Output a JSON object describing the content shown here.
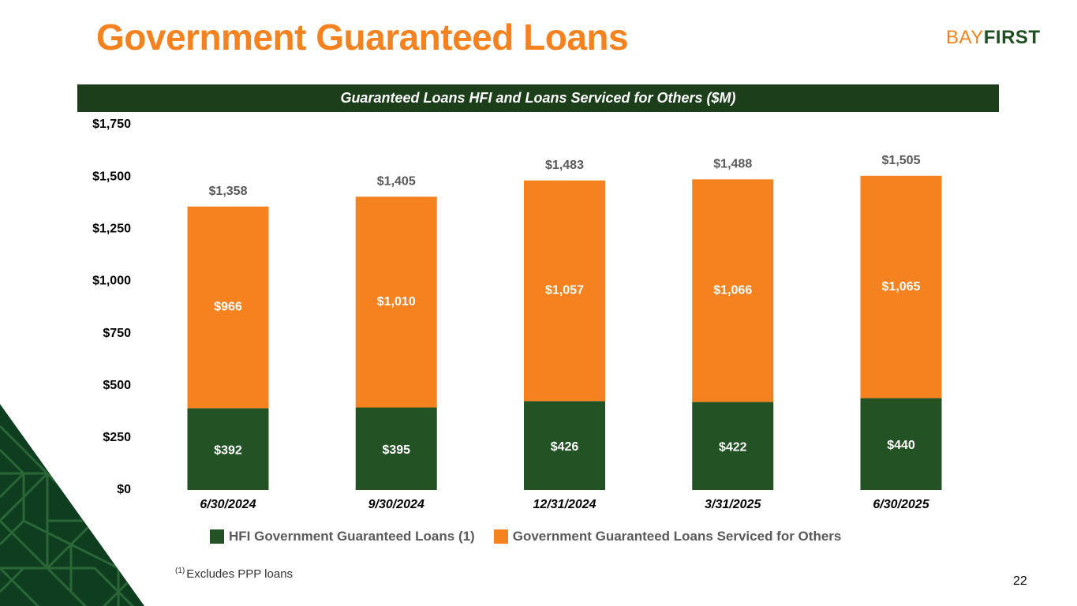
{
  "slide": {
    "title": "Government Guaranteed Loans",
    "logo_part1": "BAY",
    "logo_part2": "FIRST",
    "banner": "Guaranteed Loans HFI and Loans Serviced for Others ($M)",
    "footnote_marker": "(1)",
    "footnote_text": "Excludes PPP loans",
    "page_number": "22"
  },
  "colors": {
    "title_orange": "#f5821f",
    "dark_green": "#1f4e22",
    "banner_green": "#1c3e1b",
    "axis_text": "#000000",
    "label_gray": "#595959"
  },
  "chart_data": {
    "type": "bar",
    "stacked": true,
    "categories": [
      "6/30/2024",
      "9/30/2024",
      "12/31/2024",
      "3/31/2025",
      "6/30/2025"
    ],
    "series": [
      {
        "name": "HFI Government Guaranteed Loans (1)",
        "color": "#235325",
        "values": [
          392,
          395,
          426,
          422,
          440
        ]
      },
      {
        "name": "Government Guaranteed Loans Serviced for Others",
        "color": "#f5821f",
        "values": [
          966,
          1010,
          1057,
          1066,
          1065
        ]
      }
    ],
    "totals": [
      1358,
      1405,
      1483,
      1488,
      1505
    ],
    "data_labels": {
      "series0": [
        "$392",
        "$395",
        "$426",
        "$422",
        "$440"
      ],
      "series1": [
        "$966",
        "$1,010",
        "$1,057",
        "$1,066",
        "$1,065"
      ],
      "totals": [
        "$1,358",
        "$1,405",
        "$1,483",
        "$1,488",
        "$1,505"
      ]
    },
    "yticks": [
      0,
      250,
      500,
      750,
      1000,
      1250,
      1500,
      1750
    ],
    "ytick_labels": [
      "$0",
      "$250",
      "$500",
      "$750",
      "$1,000",
      "$1,250",
      "$1,500",
      "$1,750"
    ],
    "ylim": [
      0,
      1750
    ],
    "grid": false,
    "legend_position": "bottom"
  }
}
